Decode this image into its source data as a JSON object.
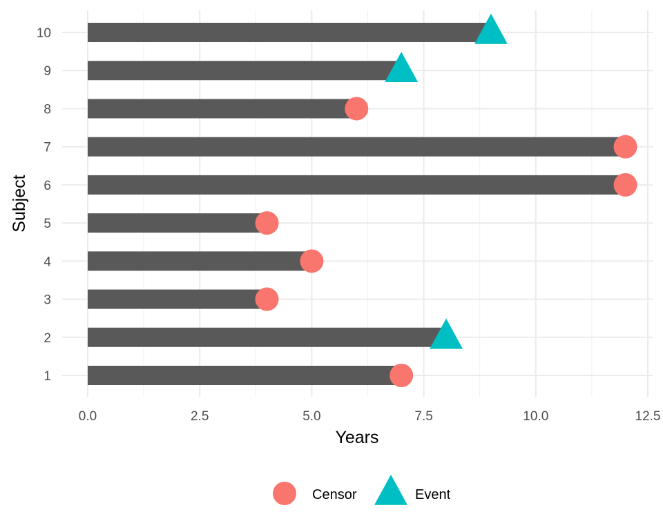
{
  "chart_data": {
    "type": "bar",
    "orientation": "horizontal",
    "xlabel": "Years",
    "ylabel": "Subject",
    "xlim": [
      0,
      12.5
    ],
    "x_ticks": [
      "0.0",
      "2.5",
      "5.0",
      "7.5",
      "10.0",
      "12.5"
    ],
    "categories": [
      "1",
      "2",
      "3",
      "4",
      "5",
      "6",
      "7",
      "8",
      "9",
      "10"
    ],
    "values": [
      7,
      8,
      4,
      5,
      4,
      12,
      12,
      6,
      7,
      9
    ],
    "status": [
      "Censor",
      "Event",
      "Censor",
      "Censor",
      "Censor",
      "Censor",
      "Censor",
      "Censor",
      "Event",
      "Event"
    ],
    "legend": [
      {
        "label": "Censor",
        "shape": "circle",
        "color": "#F8766D"
      },
      {
        "label": "Event",
        "shape": "triangle",
        "color": "#00BFC4"
      }
    ],
    "legend_position": "bottom",
    "bar_color": "#595959",
    "grid": true
  }
}
